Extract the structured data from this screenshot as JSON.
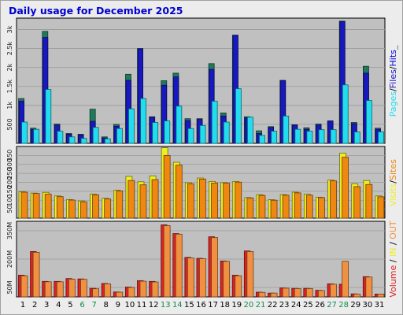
{
  "title": "Daily usage for December 2025",
  "colors": {
    "hits": "#0000e0",
    "files": "#1818c0",
    "pages": "#22ddee",
    "hits_top": "#1f7a5c",
    "visits": "#eeee22",
    "sites": "#ee8811",
    "kbin": "#dd2222",
    "kbout": "#f09040",
    "weekend": "#128a4a",
    "weekday": "#000000",
    "panel": "#c0c0c0"
  },
  "chart_data": [
    {
      "type": "bar",
      "categories": [
        "1",
        "2",
        "3",
        "4",
        "5",
        "6",
        "7",
        "8",
        "9",
        "10",
        "11",
        "12",
        "13",
        "14",
        "15",
        "16",
        "17",
        "18",
        "19",
        "20",
        "21",
        "22",
        "23",
        "24",
        "25",
        "26",
        "27",
        "28",
        "29",
        "30",
        "31"
      ],
      "weekend_days": [
        "6",
        "7",
        "13",
        "14",
        "20",
        "21",
        "27",
        "28"
      ],
      "ylim": [
        0,
        3300
      ],
      "yticks": [
        {
          "v": 500,
          "label": "500"
        },
        {
          "v": 1000,
          "label": "1k"
        },
        {
          "v": 1500,
          "label": "1.5k"
        },
        {
          "v": 2000,
          "label": "2k"
        },
        {
          "v": 2500,
          "label": "2.5k"
        },
        {
          "v": 3000,
          "label": "3k"
        }
      ],
      "right_label": [
        "Pages",
        "/",
        "Files",
        "/",
        "Hits",
        "_"
      ],
      "series": [
        {
          "name": "Hits",
          "values": [
            1180,
            400,
            2950,
            510,
            260,
            240,
            900,
            170,
            500,
            1820,
            2500,
            700,
            1650,
            1850,
            650,
            650,
            2100,
            800,
            2850,
            700,
            330,
            440,
            1660,
            490,
            410,
            510,
            590,
            3220,
            550,
            2030,
            400
          ]
        },
        {
          "name": "Files",
          "values": [
            1110,
            370,
            2790,
            480,
            240,
            220,
            580,
            140,
            450,
            1660,
            2490,
            690,
            1530,
            1750,
            600,
            630,
            1950,
            720,
            2850,
            670,
            260,
            420,
            1650,
            480,
            370,
            480,
            590,
            3210,
            520,
            1850,
            370
          ]
        },
        {
          "name": "Pages",
          "values": [
            560,
            370,
            1420,
            320,
            170,
            130,
            420,
            120,
            390,
            910,
            1180,
            550,
            590,
            980,
            390,
            470,
            1110,
            560,
            1440,
            690,
            210,
            320,
            720,
            370,
            320,
            360,
            360,
            1540,
            300,
            1130,
            300
          ]
        }
      ]
    },
    {
      "type": "bar",
      "categories": [
        "1",
        "2",
        "3",
        "4",
        "5",
        "6",
        "7",
        "8",
        "9",
        "10",
        "11",
        "12",
        "13",
        "14",
        "15",
        "16",
        "17",
        "18",
        "19",
        "20",
        "21",
        "22",
        "23",
        "24",
        "25",
        "26",
        "27",
        "28",
        "29",
        "30",
        "31"
      ],
      "ylim": [
        0,
        400
      ],
      "yticks": [
        {
          "v": 50,
          "label": "50"
        },
        {
          "v": 100,
          "label": "100"
        },
        {
          "v": 150,
          "label": "150"
        },
        {
          "v": 200,
          "label": "200"
        },
        {
          "v": 250,
          "label": "250"
        },
        {
          "v": 300,
          "label": "300"
        },
        {
          "v": 350,
          "label": "350"
        }
      ],
      "right_label": [
        "Visits",
        "/",
        "Sites"
      ],
      "series": [
        {
          "name": "Visits",
          "values": [
            148,
            140,
            144,
            124,
            104,
            96,
            134,
            111,
            156,
            233,
            203,
            236,
            393,
            312,
            198,
            224,
            205,
            198,
            205,
            115,
            131,
            103,
            131,
            145,
            134,
            117,
            212,
            363,
            192,
            210,
            124
          ]
        },
        {
          "name": "Sites",
          "values": [
            145,
            138,
            134,
            120,
            101,
            91,
            130,
            107,
            152,
            210,
            186,
            215,
            350,
            296,
            192,
            218,
            196,
            195,
            201,
            113,
            127,
            100,
            128,
            141,
            128,
            115,
            208,
            340,
            176,
            188,
            119
          ]
        }
      ]
    },
    {
      "type": "bar",
      "categories": [
        "1",
        "2",
        "3",
        "4",
        "5",
        "6",
        "7",
        "8",
        "9",
        "10",
        "11",
        "12",
        "13",
        "14",
        "15",
        "16",
        "17",
        "18",
        "19",
        "20",
        "21",
        "22",
        "23",
        "24",
        "25",
        "26",
        "27",
        "28",
        "29",
        "30",
        "31"
      ],
      "ylim": [
        0,
        400
      ],
      "yticks": [
        {
          "v": 50,
          "label": "50M"
        },
        {
          "v": 200,
          "label": "200M"
        },
        {
          "v": 350,
          "label": "350M"
        }
      ],
      "right_label": [
        "Volume",
        " / ",
        "IN",
        " / ",
        "OUT"
      ],
      "series": [
        {
          "name": "Volume",
          "values": [
            115,
            240,
            82,
            82,
            97,
            95,
            45,
            71,
            26,
            52,
            86,
            82,
            381,
            335,
            209,
            204,
            318,
            190,
            115,
            243,
            25,
            20,
            47,
            45,
            45,
            35,
            69,
            67,
            16,
            107,
            15
          ]
        },
        {
          "name": "Out",
          "values": [
            112,
            236,
            80,
            80,
            94,
            93,
            43,
            69,
            25,
            50,
            83,
            79,
            377,
            332,
            206,
            202,
            314,
            188,
            112,
            240,
            24,
            20,
            46,
            44,
            44,
            34,
            67,
            188,
            15,
            105,
            15
          ]
        }
      ]
    }
  ]
}
